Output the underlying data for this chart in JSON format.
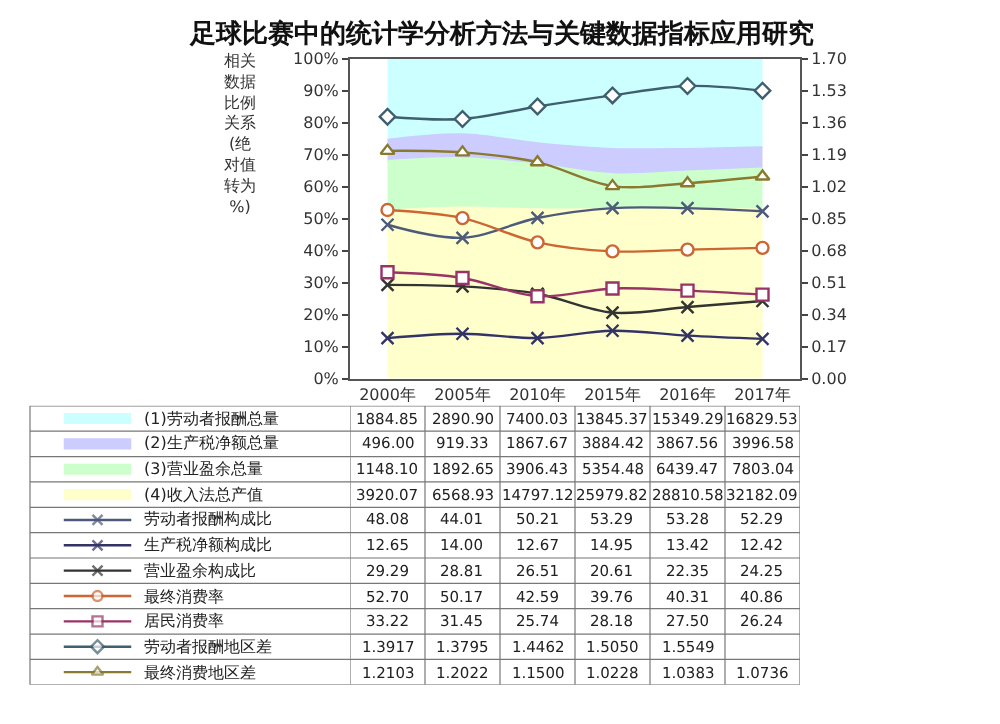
{
  "chart_data": {
    "type": "line",
    "title": "足球比赛中的统计学分析方法与关键数据指标应用研究",
    "ylabel": "相关数据比例关系(绝对值转为%)",
    "categories": [
      "2000年",
      "2005年",
      "2010年",
      "2015年",
      "2016年",
      "2017年"
    ],
    "stacked": true,
    "annotations": [
      "1884.85",
      "2890.90",
      "7400.03",
      "13845.37",
      "15349.29",
      "16829.53",
      "496.00",
      "919.33",
      "1867.67",
      "3884.42",
      "3867.56",
      "3996.58",
      "1148.10",
      "1892.65",
      "3906.43",
      "5354.48",
      "6439.47",
      "7803.04",
      "3920.07",
      "6568.93",
      "14797.12",
      "25979.82",
      "28810.58",
      "32182.09"
    ],
    "legend": "bottom left",
    "ylim": [
      0,
      100
    ],
    "yticks": [
      {
        "value": 0,
        "label": "0%"
      },
      {
        "value": 10,
        "label": "10%"
      },
      {
        "value": 20,
        "label": "20%"
      },
      {
        "value": 30,
        "label": "30%"
      },
      {
        "value": 40,
        "label": "40%"
      },
      {
        "value": 50,
        "label": "50%"
      },
      {
        "value": 60,
        "label": "60%"
      },
      {
        "value": 70,
        "label": "70%"
      },
      {
        "value": 80,
        "label": "80%"
      },
      {
        "value": 90,
        "label": "90%"
      },
      {
        "value": 100,
        "label": "100%"
      }
    ],
    "y2lim": [
      0,
      1.7
    ],
    "y2ticks": [
      {
        "value": 0,
        "label": "0.00"
      },
      {
        "value": 0.17,
        "label": "0.17"
      },
      {
        "value": 0.34,
        "label": "0.34"
      },
      {
        "value": 0.51,
        "label": "0.51"
      },
      {
        "value": 0.68,
        "label": "0.68"
      },
      {
        "value": 0.85,
        "label": "0.85"
      },
      {
        "value": 1.02,
        "label": "1.02"
      },
      {
        "value": 1.19,
        "label": "1.19"
      },
      {
        "value": 1.36,
        "label": "1.36"
      },
      {
        "value": 1.53,
        "label": "1.53"
      },
      {
        "value": 1.7,
        "label": "1.70"
      }
    ],
    "series": [
      {
        "name": "(4)收入法总产值",
        "type": "area",
        "color": "#ffffcc",
        "values": [
          52.6,
          53.5,
          52.9,
          53.0,
          52.9,
          52.9
        ]
      },
      {
        "name": "(3)营业盈余总量",
        "type": "area",
        "color": "#ccffcc",
        "values": [
          15.4,
          15.4,
          14.0,
          10.9,
          11.8,
          12.8
        ]
      },
      {
        "name": "(2)生产税净额总量",
        "type": "area",
        "color": "#ccccff",
        "values": [
          6.7,
          7.5,
          6.7,
          7.9,
          7.1,
          6.6
        ]
      },
      {
        "name": "(1)劳动者报酬总量",
        "type": "area",
        "color": "#ccffff",
        "values": [
          25.3,
          23.6,
          26.5,
          28.2,
          28.2,
          27.7
        ]
      },
      {
        "name": "劳动者报酬构成比",
        "color": "#4d5a7a",
        "marker": "cross",
        "values": [
          48.08,
          44.01,
          50.21,
          53.29,
          53.28,
          52.29
        ],
        "value_labels": [
          "48.08",
          "44.01",
          "50.21",
          "53.29",
          "53.28",
          "52.29"
        ]
      },
      {
        "name": "生产税净额构成比",
        "color": "#333366",
        "marker": "cross",
        "values": [
          12.65,
          14.0,
          12.67,
          14.95,
          13.42,
          12.42
        ],
        "value_labels": [
          "12.65",
          "14.00",
          "12.67",
          "14.95",
          "13.42",
          "12.42"
        ]
      },
      {
        "name": "营业盈余构成比",
        "color": "#333333",
        "marker": "cross",
        "values": [
          29.29,
          28.81,
          26.51,
          20.61,
          22.35,
          24.25
        ],
        "value_labels": [
          "29.29",
          "28.81",
          "26.51",
          "20.61",
          "22.35",
          "24.25"
        ]
      },
      {
        "name": "最终消费率",
        "color": "#cc6633",
        "marker": "circle",
        "values": [
          52.7,
          50.17,
          42.59,
          39.76,
          40.31,
          40.86
        ],
        "value_labels": [
          "52.70",
          "50.17",
          "42.59",
          "39.76",
          "40.31",
          "40.86"
        ]
      },
      {
        "name": "居民消费率",
        "color": "#993366",
        "marker": "square",
        "values": [
          33.22,
          31.45,
          25.74,
          28.18,
          27.5,
          26.24
        ],
        "value_labels": [
          "33.22",
          "31.45",
          "25.74",
          "28.18",
          "27.50",
          "26.24"
        ]
      },
      {
        "name": "劳动者报酬地区差",
        "color": "#3f5f6f",
        "marker": "diamond",
        "axis": "y2",
        "values": [
          1.3917,
          1.3795,
          1.4462,
          1.505,
          1.5549,
          1.53
        ],
        "value_labels": [
          "1.3917",
          "1.3795",
          "1.4462",
          "1.5050",
          "1.5549",
          null
        ]
      },
      {
        "name": "最终消费地区差",
        "color": "#8a7a30",
        "marker": "triangle",
        "axis": "y2",
        "values": [
          1.2103,
          1.2022,
          1.15,
          1.0228,
          1.0383,
          1.0736
        ],
        "value_labels": [
          "1.2103",
          "1.2022",
          "1.1500",
          "1.0228",
          "1.0383",
          "1.0736"
        ]
      }
    ]
  }
}
